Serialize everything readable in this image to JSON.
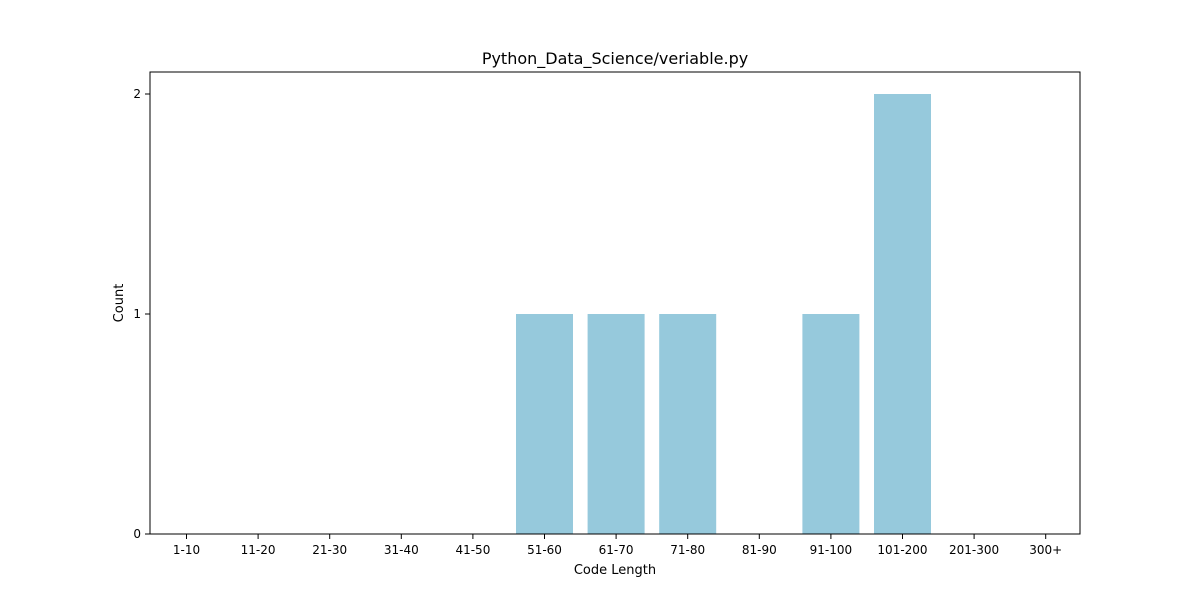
{
  "chart_data": {
    "type": "bar",
    "title": "Python_Data_Science/veriable.py",
    "xlabel": "Code Length",
    "ylabel": "Count",
    "categories": [
      "1-10",
      "11-20",
      "21-30",
      "31-40",
      "41-50",
      "51-60",
      "61-70",
      "71-80",
      "81-90",
      "91-100",
      "101-200",
      "201-300",
      "300+"
    ],
    "values": [
      0,
      0,
      0,
      0,
      0,
      1,
      1,
      1,
      0,
      1,
      2,
      0,
      0
    ],
    "yticks": [
      0,
      1,
      2
    ],
    "ylim": [
      0,
      2.1
    ],
    "grid": false,
    "legend": "none",
    "bar_color": "#96c9dc"
  }
}
